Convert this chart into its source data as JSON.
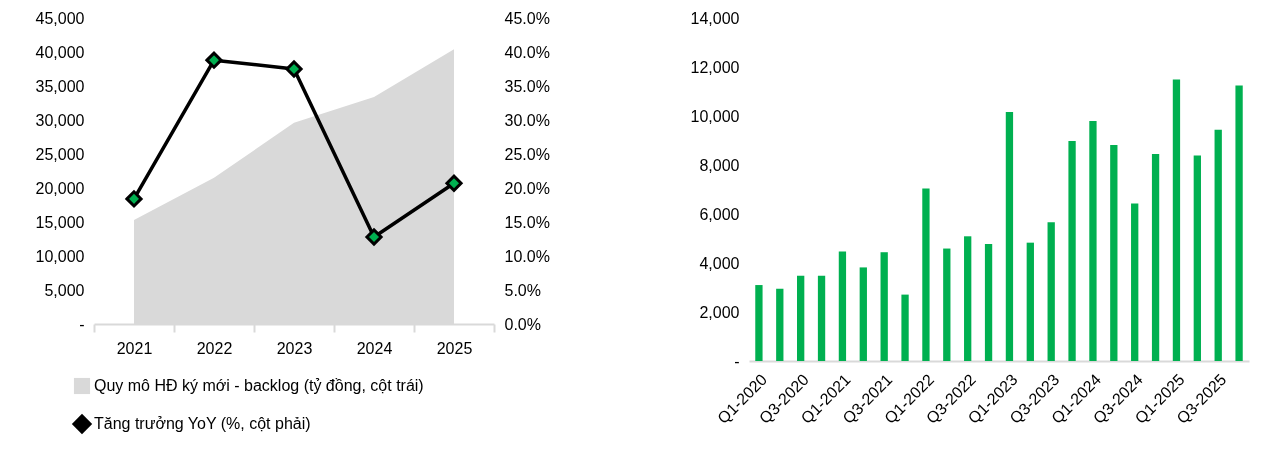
{
  "chart_data": [
    {
      "type": "area",
      "categories": [
        "2021",
        "2022",
        "2023",
        "2024",
        "2025"
      ],
      "series": [
        {
          "name": "Quy mô HĐ ký mới - backlog (tỷ đồng, cột trái)",
          "color": "#d9d9d9",
          "values": [
            15300,
            21500,
            29600,
            33400,
            40400
          ]
        },
        {
          "name": "Tăng trưởng YoY (%, cột phải)",
          "type": "line",
          "axis": "y2",
          "color": "#000000",
          "marker": "diamond",
          "values": [
            18.4,
            38.8,
            37.5,
            12.8,
            20.7
          ]
        }
      ],
      "ylim": [
        0,
        45000
      ],
      "yticks": [
        {
          "value": 0,
          "label": "-"
        },
        {
          "value": 5000,
          "label": "5,000"
        },
        {
          "value": 10000,
          "label": "10,000"
        },
        {
          "value": 15000,
          "label": "15,000"
        },
        {
          "value": 20000,
          "label": "20,000"
        },
        {
          "value": 25000,
          "label": "25,000"
        },
        {
          "value": 30000,
          "label": "30,000"
        },
        {
          "value": 35000,
          "label": "35,000"
        },
        {
          "value": 40000,
          "label": "40,000"
        },
        {
          "value": 45000,
          "label": "45,000"
        }
      ],
      "y2lim": [
        0,
        45
      ],
      "y2ticks": [
        {
          "value": 0,
          "label": "0.0%"
        },
        {
          "value": 5,
          "label": "5.0%"
        },
        {
          "value": 10,
          "label": "10.0%"
        },
        {
          "value": 15,
          "label": "15.0%"
        },
        {
          "value": 20,
          "label": "20.0%"
        },
        {
          "value": 25,
          "label": "25.0%"
        },
        {
          "value": 30,
          "label": "30.0%"
        },
        {
          "value": 35,
          "label": "35.0%"
        },
        {
          "value": 40,
          "label": "40.0%"
        },
        {
          "value": 45,
          "label": "45.0%"
        }
      ],
      "legend": "bottom"
    },
    {
      "type": "bar",
      "categories": [
        "Q1-2020",
        null,
        "Q3-2020",
        null,
        "Q1-2021",
        null,
        "Q3-2021",
        null,
        "Q1-2022",
        null,
        "Q3-2022",
        null,
        "Q1-2023",
        null,
        "Q3-2023",
        null,
        "Q1-2024",
        null,
        "Q3-2024",
        null,
        "Q1-2025",
        null,
        "Q3-2025",
        null
      ],
      "values": [
        3100,
        2950,
        3480,
        3480,
        4470,
        3820,
        4440,
        2710,
        7040,
        4590,
        5090,
        4780,
        10160,
        4830,
        5660,
        8980,
        9800,
        8820,
        6430,
        8450,
        11490,
        8390,
        9440,
        11250
      ],
      "color": "#00b050",
      "ylim": [
        0,
        14000
      ],
      "yticks": [
        {
          "value": 0,
          "label": "-"
        },
        {
          "value": 2000,
          "label": "2,000"
        },
        {
          "value": 4000,
          "label": "4,000"
        },
        {
          "value": 6000,
          "label": "6,000"
        },
        {
          "value": 8000,
          "label": "8,000"
        },
        {
          "value": 10000,
          "label": "10,000"
        },
        {
          "value": 12000,
          "label": "12,000"
        },
        {
          "value": 14000,
          "label": "14,000"
        }
      ]
    }
  ]
}
